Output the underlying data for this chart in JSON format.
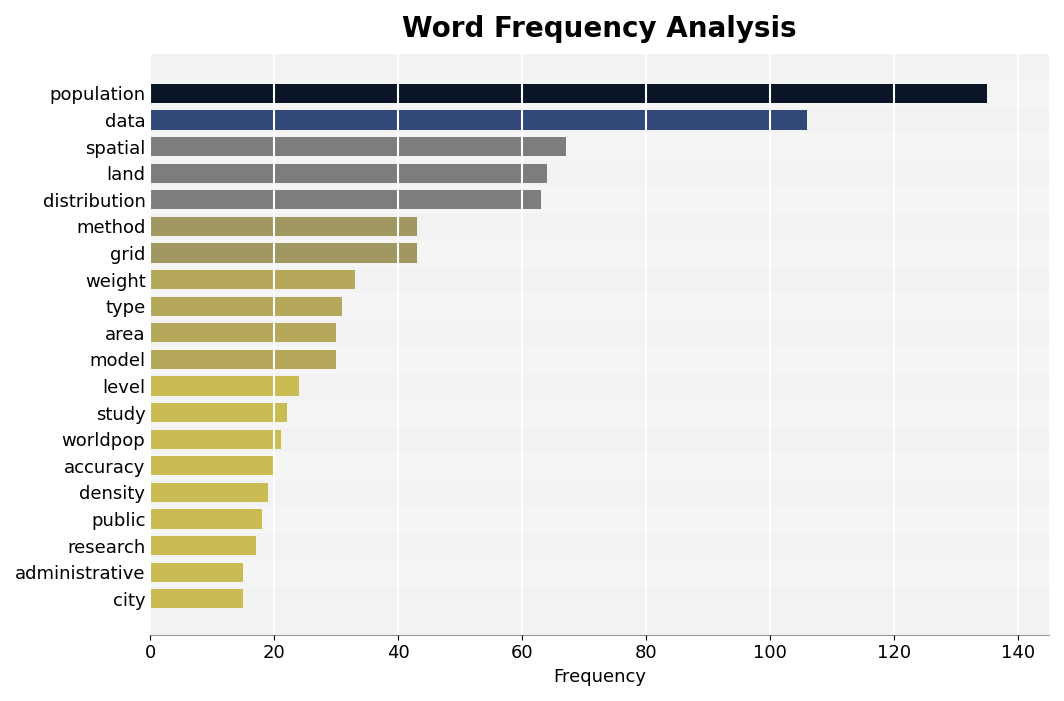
{
  "title": "Word Frequency Analysis",
  "xlabel": "Frequency",
  "categories": [
    "population",
    "data",
    "spatial",
    "land",
    "distribution",
    "method",
    "grid",
    "weight",
    "type",
    "area",
    "model",
    "level",
    "study",
    "worldpop",
    "accuracy",
    "density",
    "public",
    "research",
    "administrative",
    "city"
  ],
  "values": [
    135,
    106,
    67,
    64,
    63,
    43,
    43,
    33,
    31,
    30,
    30,
    24,
    22,
    21,
    20,
    19,
    18,
    17,
    15,
    15
  ],
  "bar_colors": [
    "#0a1628",
    "#314878",
    "#7d7d7d",
    "#7d7d7d",
    "#7d7d7d",
    "#a09860",
    "#a09860",
    "#b5a85a",
    "#b5a85a",
    "#b5a85a",
    "#b5a85a",
    "#c9bc52",
    "#c9bc52",
    "#c9bc52",
    "#c9bc52",
    "#c9bc52",
    "#c9bc52",
    "#c9bc52",
    "#c9bc52",
    "#c9bc52"
  ],
  "plot_bg_color": "#f2f2f2",
  "fig_bg_color": "#ffffff",
  "xlim": [
    0,
    145
  ],
  "xticks": [
    0,
    20,
    40,
    60,
    80,
    100,
    120,
    140
  ],
  "title_fontsize": 20,
  "label_fontsize": 13,
  "tick_fontsize": 13,
  "bar_height": 0.72
}
